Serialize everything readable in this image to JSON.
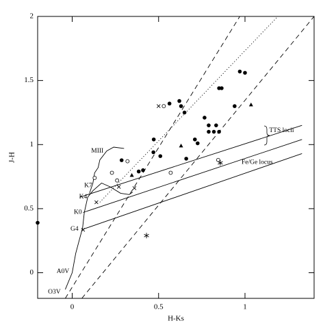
{
  "chart_data": {
    "type": "scatter",
    "x_label": "H-Ks",
    "y_label": "J-H",
    "xlim": [
      -0.2,
      1.4
    ],
    "ylim": [
      -0.2,
      2
    ],
    "xticks": [
      0,
      0.5,
      1
    ],
    "yticks": [
      0,
      0.5,
      1,
      1.5,
      2
    ],
    "color": "#000000",
    "series": [
      {
        "marker": "filled-circle",
        "x": [
          -0.2,
          0.286,
          0.385,
          0.41,
          0.472,
          0.47,
          0.51,
          0.563,
          0.62,
          0.63,
          0.65,
          0.66,
          0.71,
          0.726,
          0.766,
          0.79,
          0.79,
          0.82,
          0.833,
          0.85,
          0.85,
          0.865,
          0.94,
          0.97,
          1.0
        ],
        "y": [
          0.39,
          0.878,
          0.79,
          0.8,
          1.04,
          0.94,
          0.91,
          1.32,
          1.34,
          1.3,
          1.25,
          0.89,
          1.04,
          1.01,
          1.21,
          1.15,
          1.1,
          1.1,
          1.15,
          1.1,
          1.44,
          1.44,
          1.3,
          1.57,
          1.56
        ]
      },
      {
        "marker": "open-circle",
        "x": [
          0.13,
          0.23,
          0.26,
          0.32,
          0.53,
          0.57,
          0.845
        ],
        "y": [
          0.74,
          0.78,
          0.72,
          0.87,
          1.3,
          0.78,
          0.88
        ]
      },
      {
        "marker": "cross",
        "x": [
          0.063,
          0.14,
          0.27,
          0.36,
          0.5
        ],
        "y": [
          0.335,
          0.55,
          0.67,
          0.66,
          1.3
        ]
      },
      {
        "marker": "filled-triangle",
        "x": [
          0.345,
          0.63,
          1.035
        ],
        "y": [
          0.76,
          0.99,
          1.31
        ]
      },
      {
        "marker": "asterisk",
        "x": [
          0.43,
          0.857
        ],
        "y": [
          0.29,
          0.857
        ]
      }
    ],
    "lines": [
      {
        "style": "dashed",
        "x": [
          -0.04,
          0.97
        ],
        "y": [
          -0.2,
          2
        ]
      },
      {
        "style": "dashed",
        "x": [
          0.056,
          1.4
        ],
        "y": [
          -0.2,
          2
        ]
      },
      {
        "style": "dotted",
        "x": [
          0.16,
          1.19
        ],
        "y": [
          0.55,
          2
        ]
      },
      {
        "style": "solid",
        "x": [
          0.044,
          1.33
        ],
        "y": [
          0.59,
          1.15
        ]
      },
      {
        "style": "solid",
        "x": [
          0.063,
          1.33
        ],
        "y": [
          0.47,
          1.04
        ]
      },
      {
        "style": "solid",
        "x": [
          0.063,
          1.33
        ],
        "y": [
          0.34,
          0.93
        ]
      },
      {
        "style": "solid",
        "x": [
          -0.04,
          0.0,
          0.02,
          0.04,
          0.06,
          0.07,
          0.09,
          0.12,
          0.17,
          0.22,
          0.28,
          0.33,
          0.35
        ],
        "y": [
          -0.13,
          0.0,
          0.15,
          0.25,
          0.35,
          0.47,
          0.59,
          0.64,
          0.7,
          0.67,
          0.62,
          0.61,
          0.63
        ]
      },
      {
        "style": "solid",
        "x": [
          0.1,
          0.12,
          0.13,
          0.15,
          0.16,
          0.2,
          0.24,
          0.3
        ],
        "y": [
          0.62,
          0.7,
          0.78,
          0.82,
          0.88,
          0.95,
          0.98,
          0.97
        ]
      }
    ],
    "annotations": [
      {
        "text": "MIII",
        "x": 0.11,
        "y": 0.95
      },
      {
        "text": "K7",
        "x": 0.07,
        "y": 0.68
      },
      {
        "text": "K4",
        "x": 0.04,
        "y": 0.59
      },
      {
        "text": "K0",
        "x": 0.01,
        "y": 0.47
      },
      {
        "text": "G4",
        "x": -0.01,
        "y": 0.34
      },
      {
        "text": "A0V",
        "x": -0.09,
        "y": 0.01
      },
      {
        "text": "O3V",
        "x": -0.14,
        "y": -0.15
      },
      {
        "text": "TTS locii",
        "x": 1.14,
        "y": 1.11
      },
      {
        "text": "Fe/Ge locus",
        "x": 0.98,
        "y": 0.86
      }
    ]
  }
}
